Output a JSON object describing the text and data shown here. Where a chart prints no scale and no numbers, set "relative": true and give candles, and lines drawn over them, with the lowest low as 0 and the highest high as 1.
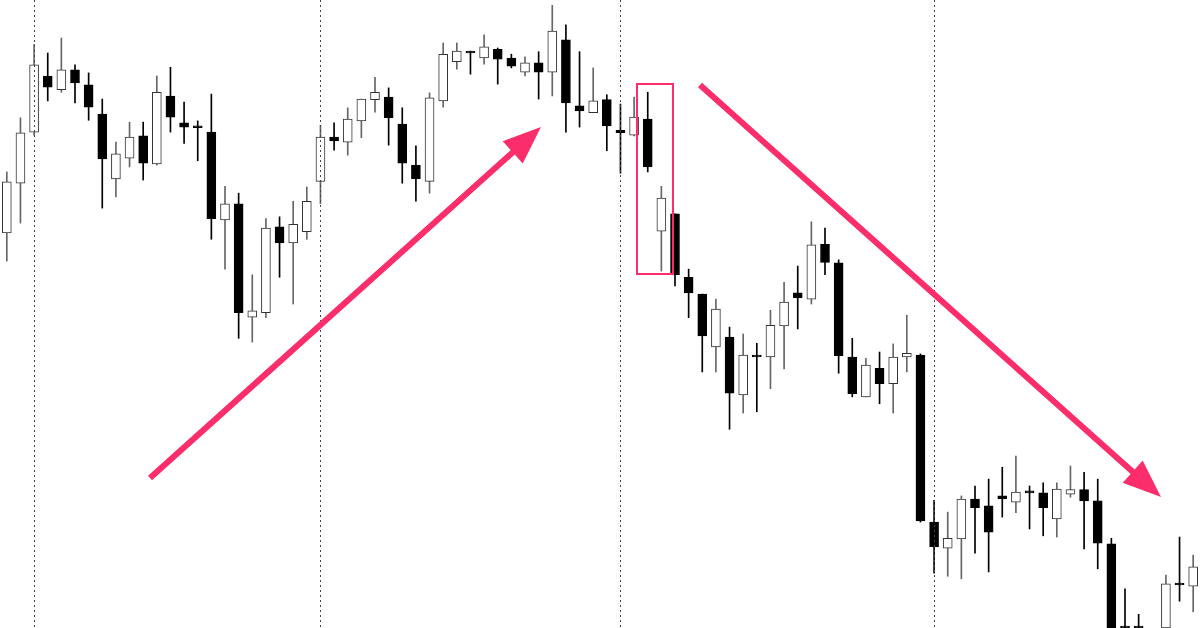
{
  "chart_data": {
    "type": "candlestick",
    "relative": true,
    "grid": "x",
    "categories": [
      null,
      null,
      null,
      null,
      null,
      null,
      null,
      null,
      null,
      null,
      null,
      null,
      null,
      null,
      null,
      null,
      null,
      null,
      null,
      null,
      null,
      null,
      null,
      null,
      null,
      null,
      null,
      null,
      null,
      null,
      null,
      null,
      null,
      null,
      null,
      null,
      null,
      null,
      null,
      null,
      null,
      null,
      null,
      null,
      null,
      null,
      null,
      null,
      null,
      null,
      null,
      null,
      null,
      null,
      null,
      null,
      null,
      null,
      null,
      null,
      null,
      null,
      null,
      null,
      null,
      null,
      null,
      null,
      null,
      null,
      null,
      null,
      null,
      null,
      null,
      null,
      null,
      null,
      null,
      null,
      null,
      null,
      null,
      null,
      null,
      null,
      null,
      null
    ],
    "ohlc": [
      [
        0.634,
        0.732,
        0.589,
        0.716
      ],
      [
        0.714,
        0.819,
        0.65,
        0.795
      ],
      [
        0.796,
        0.937,
        0.791,
        0.904
      ],
      [
        0.886,
        0.923,
        0.846,
        0.868
      ],
      [
        0.864,
        0.947,
        0.86,
        0.896
      ],
      [
        0.896,
        0.904,
        0.843,
        0.875
      ],
      [
        0.872,
        0.891,
        0.815,
        0.836
      ],
      [
        0.825,
        0.849,
        0.674,
        0.753
      ],
      [
        0.721,
        0.78,
        0.692,
        0.761
      ],
      [
        0.754,
        0.812,
        0.74,
        0.788
      ],
      [
        0.79,
        0.812,
        0.719,
        0.746
      ],
      [
        0.745,
        0.886,
        0.743,
        0.86
      ],
      [
        0.854,
        0.9,
        0.796,
        0.82
      ],
      [
        0.811,
        0.844,
        0.778,
        0.804
      ],
      [
        0.803,
        0.814,
        0.75,
        0.803
      ],
      [
        0.796,
        0.857,
        0.624,
        0.657
      ],
      [
        0.655,
        0.709,
        0.576,
        0.681
      ],
      [
        0.681,
        0.698,
        0.465,
        0.506
      ],
      [
        0.499,
        0.567,
        0.459,
        0.509
      ],
      [
        0.506,
        0.657,
        0.498,
        0.642
      ],
      [
        0.644,
        0.66,
        0.563,
        0.618
      ],
      [
        0.618,
        0.685,
        0.52,
        0.648
      ],
      [
        0.636,
        0.708,
        0.624,
        0.685
      ],
      [
        0.717,
        0.807,
        0.681,
        0.788
      ],
      [
        0.788,
        0.811,
        0.767,
        0.782
      ],
      [
        0.78,
        0.835,
        0.759,
        0.817
      ],
      [
        0.814,
        0.849,
        0.787,
        0.849
      ],
      [
        0.848,
        0.884,
        0.828,
        0.86
      ],
      [
        0.852,
        0.867,
        0.775,
        0.819
      ],
      [
        0.809,
        0.835,
        0.714,
        0.746
      ],
      [
        0.743,
        0.774,
        0.685,
        0.721
      ],
      [
        0.717,
        0.859,
        0.698,
        0.851
      ],
      [
        0.846,
        0.939,
        0.836,
        0.921
      ],
      [
        0.909,
        0.939,
        0.897,
        0.926
      ],
      [
        0.926,
        0.926,
        0.889,
        0.923
      ],
      [
        0.915,
        0.952,
        0.905,
        0.933
      ],
      [
        0.929,
        0.931,
        0.873,
        0.913
      ],
      [
        0.915,
        0.921,
        0.899,
        0.902
      ],
      [
        0.892,
        0.917,
        0.886,
        0.907
      ],
      [
        0.907,
        0.925,
        0.849,
        0.892
      ],
      [
        0.892,
        1.0,
        0.854,
        0.958
      ],
      [
        0.944,
        0.968,
        0.796,
        0.843
      ],
      [
        0.838,
        0.925,
        0.804,
        0.83
      ],
      [
        0.827,
        0.899,
        0.827,
        0.846
      ],
      [
        0.848,
        0.856,
        0.766,
        0.806
      ],
      [
        0.799,
        0.841,
        0.73,
        0.795
      ],
      [
        0.791,
        0.852,
        0.79,
        0.82
      ],
      [
        0.817,
        0.86,
        0.732,
        0.74
      ],
      [
        0.637,
        0.709,
        0.573,
        0.69
      ],
      [
        0.665,
        0.665,
        0.549,
        0.567
      ],
      [
        0.563,
        0.576,
        0.498,
        0.538
      ],
      [
        0.536,
        0.536,
        0.411,
        0.469
      ],
      [
        0.451,
        0.528,
        0.411,
        0.512
      ],
      [
        0.467,
        0.483,
        0.319,
        0.377
      ],
      [
        0.374,
        0.472,
        0.345,
        0.438
      ],
      [
        0.438,
        0.457,
        0.347,
        0.435
      ],
      [
        0.435,
        0.51,
        0.384,
        0.486
      ],
      [
        0.485,
        0.555,
        0.416,
        0.523
      ],
      [
        0.538,
        0.581,
        0.48,
        0.53
      ],
      [
        0.528,
        0.652,
        0.52,
        0.615
      ],
      [
        0.616,
        0.642,
        0.567,
        0.587
      ],
      [
        0.586,
        0.591,
        0.409,
        0.437
      ],
      [
        0.435,
        0.465,
        0.371,
        0.376
      ],
      [
        0.371,
        0.433,
        0.371,
        0.422
      ],
      [
        0.417,
        0.443,
        0.36,
        0.392
      ],
      [
        0.392,
        0.456,
        0.345,
        0.435
      ],
      [
        0.435,
        0.502,
        0.411,
        0.441
      ],
      [
        0.438,
        0.44,
        0.17,
        0.172
      ],
      [
        0.17,
        0.205,
        0.088,
        0.13
      ],
      [
        0.128,
        0.186,
        0.083,
        0.144
      ],
      [
        0.143,
        0.212,
        0.079,
        0.207
      ],
      [
        0.207,
        0.228,
        0.12,
        0.193
      ],
      [
        0.196,
        0.239,
        0.09,
        0.154
      ],
      [
        0.212,
        0.258,
        0.178,
        0.207
      ],
      [
        0.202,
        0.276,
        0.185,
        0.218
      ],
      [
        0.217,
        0.228,
        0.159,
        0.217
      ],
      [
        0.217,
        0.233,
        0.148,
        0.193
      ],
      [
        0.175,
        0.233,
        0.146,
        0.223
      ],
      [
        0.215,
        0.26,
        0.21,
        0.222
      ],
      [
        0.222,
        0.25,
        0.127,
        0.204
      ],
      [
        0.204,
        0.239,
        0.095,
        0.136
      ],
      [
        0.135,
        0.144,
        0,
        0
      ],
      [
        0,
        0.063,
        0,
        0
      ],
      [
        0,
        0.022,
        0,
        0
      ],
      null,
      [
        0,
        0.085,
        0,
        0.071
      ],
      [
        0.069,
        0.146,
        0.043,
        0.069
      ],
      [
        0.067,
        0.117,
        0.026,
        0.098
      ]
    ]
  }
}
